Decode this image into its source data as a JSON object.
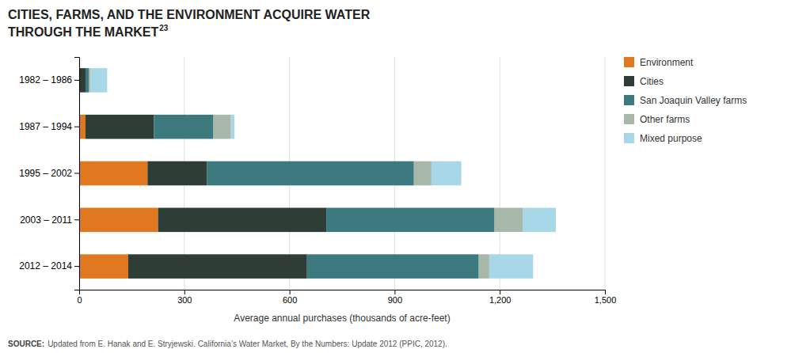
{
  "chart_data": {
    "type": "bar",
    "orientation": "horizontal",
    "stacked": true,
    "title": "CITIES, FARMS, AND THE ENVIRONMENT ACQUIRE WATER",
    "subtitle": "THROUGH THE MARKET",
    "annotations": [
      "23",
      "SOURCE:",
      "Updated from E. Hanak and E. Stryjewski. California’s Water Market, By the Numbers: Update 2012 (PPIC, 2012)."
    ],
    "x_label": "Average annual purchases (thousands of acre-feet)",
    "categories": [
      "1982 – 1986",
      "1987 – 1994",
      "1995 – 2002",
      "2003 – 2011",
      "2012 – 2014"
    ],
    "series": [
      {
        "name": "Environment",
        "color": "#E07820",
        "values": [
          0,
          18,
          195,
          225,
          140
        ]
      },
      {
        "name": "Cities",
        "color": "#2E3D35",
        "values": [
          18,
          195,
          170,
          480,
          510
        ]
      },
      {
        "name": "San Joaquin Valley farms",
        "color": "#3D7A80",
        "values": [
          10,
          170,
          590,
          480,
          490
        ]
      },
      {
        "name": "Other farms",
        "color": "#A8B8A8",
        "values": [
          5,
          50,
          50,
          80,
          30
        ]
      },
      {
        "name": "Mixed purpose",
        "color": "#A8D8E8",
        "values": [
          47,
          10,
          85,
          95,
          125
        ]
      }
    ],
    "xlim": [
      0,
      1500
    ],
    "xticks": [
      0,
      300,
      600,
      900,
      {
        "value": 1200,
        "label": "1,200"
      },
      {
        "value": 1500,
        "label": "1,500"
      }
    ],
    "grid": true,
    "legend": "right"
  }
}
